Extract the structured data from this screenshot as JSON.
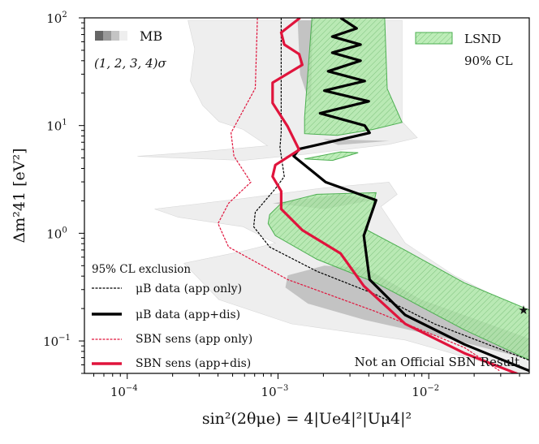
{
  "chart_data": {
    "type": "line",
    "xscale": "log",
    "yscale": "log",
    "xlim": [
      5.2e-05,
      0.0464
    ],
    "ylim": [
      0.05,
      100
    ],
    "xlabel": "sin²(2θμe) = 4|Ue4|²|Uμ4|²",
    "ylabel": "Δm²41 [eV²]",
    "xticks": [
      {
        "value": 0.0001,
        "base": "10",
        "exp": "−4"
      },
      {
        "value": 0.001,
        "base": "10",
        "exp": "−3"
      },
      {
        "value": 0.01,
        "base": "10",
        "exp": "−2"
      }
    ],
    "yticks": [
      {
        "value": 100,
        "base": "10",
        "exp": "2"
      },
      {
        "value": 10,
        "base": "10",
        "exp": "1"
      },
      {
        "value": 1,
        "base": "10",
        "exp": "0"
      },
      {
        "value": 0.1,
        "base": "10",
        "exp": "−1"
      }
    ],
    "grid": false,
    "annotation": "Not an Official SBN Result",
    "mb_legend": {
      "label": "MB",
      "sigma_label": "(1, 2, 3, 4)σ",
      "shades": [
        "#666666",
        "#999999",
        "#c4c4c4",
        "#eeeeee"
      ]
    },
    "lsnd_legend": {
      "label_line1": "LSND",
      "label_line2": "90% CL"
    },
    "exclusion_legend_title": "95% CL exclusion",
    "colors": {
      "black": "#000000",
      "red": "#e0143c",
      "lsnd_fill": "#a6e6a0",
      "lsnd_edge": "#4caf50",
      "mb_light": "#eeeeee",
      "mb_dark": "#b8b8b8"
    },
    "regions": {
      "mb_light": [
        [
          [
            0.000253,
            95
          ],
          [
            0.00665,
            95
          ],
          [
            0.00665,
            10.9
          ],
          [
            0.0084,
            7.7
          ],
          [
            0.00545,
            6.7
          ],
          [
            0.00158,
            5.45
          ],
          [
            0.000587,
            4.75
          ],
          [
            0.000117,
            5.18
          ],
          [
            0.000316,
            5.74
          ],
          [
            0.00085,
            6.5
          ],
          [
            0.000587,
            9.2
          ],
          [
            0.000405,
            10.9
          ],
          [
            0.000316,
            15.4
          ],
          [
            0.000262,
            25.9
          ],
          [
            0.00028,
            51.8
          ]
        ],
        [
          [
            0.000152,
            1.68
          ],
          [
            0.000587,
            2.1
          ],
          [
            0.00203,
            2.64
          ],
          [
            0.00545,
            2.98
          ],
          [
            0.00617,
            2.3
          ],
          [
            0.00482,
            1.77
          ],
          [
            0.00698,
            0.81
          ],
          [
            0.0147,
            0.406
          ],
          [
            0.0494,
            0.171
          ],
          [
            0.0494,
            0.047
          ],
          [
            0.00698,
            0.102
          ],
          [
            0.00123,
            0.144
          ],
          [
            0.000405,
            0.242
          ],
          [
            0.000238,
            0.527
          ],
          [
            0.000587,
            0.684
          ],
          [
            0.00096,
            0.81
          ],
          [
            0.000587,
            1.15
          ],
          [
            0.000218,
            1.41
          ]
        ]
      ],
      "mb_dark": [
        [
          [
            0.00116,
            0.406
          ],
          [
            0.00203,
            0.5
          ],
          [
            0.00376,
            0.48
          ],
          [
            0.0089,
            0.242
          ],
          [
            0.0494,
            0.102
          ],
          [
            0.0494,
            0.066
          ],
          [
            0.0147,
            0.102
          ],
          [
            0.00376,
            0.157
          ],
          [
            0.00158,
            0.222
          ],
          [
            0.00112,
            0.313
          ]
        ],
        [
          [
            0.00135,
            95
          ],
          [
            0.0017,
            95
          ],
          [
            0.00165,
            15
          ],
          [
            0.0014,
            30
          ]
        ],
        [
          [
            0.002,
            7.5
          ],
          [
            0.0055,
            7.2
          ],
          [
            0.0025,
            6.6
          ]
        ],
        [
          [
            0.00092,
            1.9
          ],
          [
            0.0026,
            2.3
          ],
          [
            0.00426,
            2.03
          ],
          [
            0.00203,
            1.68
          ]
        ]
      ],
      "lsnd": [
        [
          [
            0.00168,
            100
          ],
          [
            0.0015,
            11.9
          ],
          [
            0.0015,
            8.4
          ],
          [
            0.00247,
            8.1
          ],
          [
            0.00426,
            9.2
          ],
          [
            0.00665,
            10.7
          ],
          [
            0.0053,
            22
          ],
          [
            0.0051,
            100
          ]
        ],
        [
          [
            0.0015,
            4.9
          ],
          [
            0.0026,
            5.7
          ],
          [
            0.0034,
            5.6
          ],
          [
            0.0023,
            4.75
          ]
        ],
        [
          [
            0.00088,
            1.49
          ],
          [
            0.00105,
            1.9
          ],
          [
            0.00181,
            2.3
          ],
          [
            0.00447,
            2.38
          ],
          [
            0.00426,
            1.77
          ],
          [
            0.0039,
            1.07
          ],
          [
            0.00698,
            0.695
          ],
          [
            0.0172,
            0.347
          ],
          [
            0.0494,
            0.187
          ],
          [
            0.0494,
            0.064
          ],
          [
            0.0172,
            0.127
          ],
          [
            0.00447,
            0.347
          ],
          [
            0.00181,
            0.574
          ],
          [
            0.00096,
            0.95
          ],
          [
            0.00086,
            1.23
          ]
        ]
      ]
    },
    "series": [
      {
        "name": "μB data (app only)",
        "color": "#000000",
        "style": "dashed",
        "weight": "thin",
        "points": [
          [
            0.00105,
            100
          ],
          [
            0.00105,
            8.55
          ],
          [
            0.00103,
            6.27
          ],
          [
            0.0011,
            3.36
          ],
          [
            0.00096,
            2.59
          ],
          [
            0.000707,
            1.57
          ],
          [
            0.00069,
            1.15
          ],
          [
            0.00088,
            0.745
          ],
          [
            0.00181,
            0.444
          ],
          [
            0.00447,
            0.269
          ],
          [
            0.0109,
            0.144
          ],
          [
            0.0494,
            0.064
          ]
        ]
      },
      {
        "name": "μB data (app+dis)",
        "color": "#000000",
        "style": "solid",
        "weight": "thick",
        "points": [
          [
            0.0026,
            100
          ],
          [
            0.00332,
            79.8
          ],
          [
            0.00229,
            67
          ],
          [
            0.00353,
            56.5
          ],
          [
            0.00229,
            47.5
          ],
          [
            0.00353,
            40
          ],
          [
            0.00215,
            31.9
          ],
          [
            0.00376,
            25.9
          ],
          [
            0.00203,
            21.1
          ],
          [
            0.004,
            16.8
          ],
          [
            0.0019,
            13
          ],
          [
            0.00376,
            10
          ],
          [
            0.00405,
            8.55
          ],
          [
            0.00138,
            6.05
          ],
          [
            0.00127,
            5.2
          ],
          [
            0.00207,
            2.98
          ],
          [
            0.00447,
            2.03
          ],
          [
            0.00371,
            0.95
          ],
          [
            0.00405,
            0.372
          ],
          [
            0.00698,
            0.174
          ],
          [
            0.0172,
            0.093
          ],
          [
            0.0494,
            0.051
          ]
        ]
      },
      {
        "name": "SBN sens (app only)",
        "color": "#e0143c",
        "style": "dashed",
        "weight": "thin",
        "points": [
          [
            0.00073,
            100
          ],
          [
            0.000707,
            22.2
          ],
          [
            0.000488,
            8.55
          ],
          [
            0.00051,
            5.2
          ],
          [
            0.00066,
            2.98
          ],
          [
            0.00047,
            1.9
          ],
          [
            0.0004,
            1.23
          ],
          [
            0.00047,
            0.745
          ],
          [
            0.00116,
            0.372
          ],
          [
            0.00447,
            0.187
          ],
          [
            0.0172,
            0.087
          ],
          [
            0.0294,
            0.053
          ]
        ]
      },
      {
        "name": "SBN sens (app+dis)",
        "color": "#e0143c",
        "style": "solid",
        "weight": "thick",
        "points": [
          [
            0.0014,
            100
          ],
          [
            0.00105,
            73
          ],
          [
            0.0011,
            56.5
          ],
          [
            0.00138,
            46
          ],
          [
            0.00145,
            36.6
          ],
          [
            0.00092,
            25
          ],
          [
            0.00092,
            16.2
          ],
          [
            0.00116,
            9.8
          ],
          [
            0.00138,
            5.95
          ],
          [
            0.00096,
            4.3
          ],
          [
            0.00092,
            3.36
          ],
          [
            0.00105,
            2.46
          ],
          [
            0.00105,
            1.68
          ],
          [
            0.00145,
            1.07
          ],
          [
            0.0026,
            0.649
          ],
          [
            0.00371,
            0.324
          ],
          [
            0.00698,
            0.144
          ],
          [
            0.0172,
            0.077
          ],
          [
            0.0395,
            0.049
          ]
        ]
      }
    ],
    "star_marker": [
      0.0425,
      0.193
    ]
  }
}
